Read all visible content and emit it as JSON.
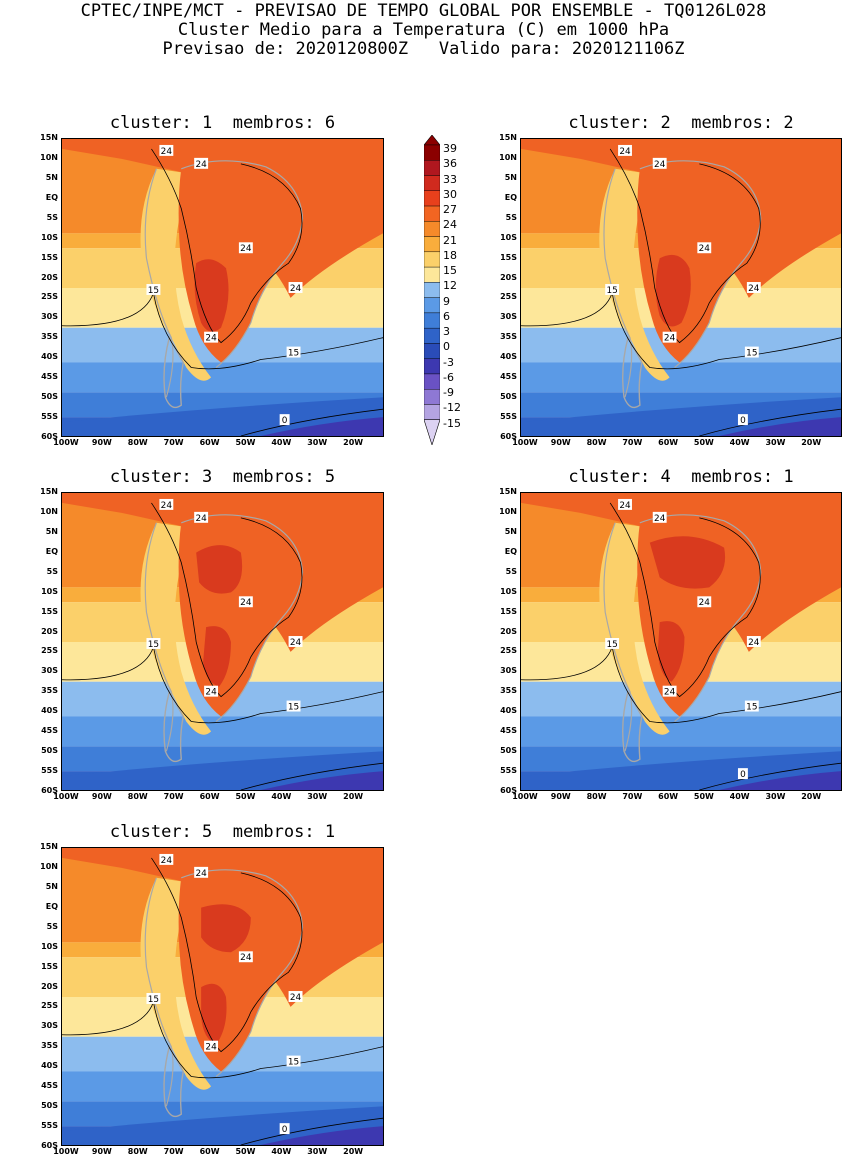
{
  "header": {
    "line1": "CPTEC/INPE/MCT - PREVISAO DE TEMPO GLOBAL POR ENSEMBLE - TQ0126L028",
    "line2": "Cluster Medio para a Temperatura (C) em 1000 hPa",
    "line3": "Previsao de: 2020120800Z   Valido para: 2020121106Z"
  },
  "panels": [
    {
      "title": "cluster: 1  membros: 6",
      "contours": {
        "c24": [
          "24",
          "24",
          "24",
          "24",
          "24"
        ],
        "c15": [
          "15",
          "15"
        ],
        "c0": "0"
      }
    },
    {
      "title": "cluster: 2  membros: 2",
      "contours": {
        "c24": [
          "24",
          "24",
          "24",
          "24",
          "24"
        ],
        "c15": [
          "15",
          "15"
        ],
        "c0": "0"
      }
    },
    {
      "title": "cluster: 3  membros: 5",
      "contours": {
        "c24": [
          "24",
          "24",
          "24",
          "24",
          "24"
        ],
        "c15": [
          "15",
          "15"
        ],
        "c0": ""
      }
    },
    {
      "title": "cluster: 4  membros: 1",
      "contours": {
        "c24": [
          "24",
          "24",
          "24",
          "24",
          "24"
        ],
        "c15": [
          "15",
          "15"
        ],
        "c0": "0"
      }
    },
    {
      "title": "cluster: 5  membros: 1",
      "contours": {
        "c24": [
          "24",
          "24",
          "24",
          "24",
          "24"
        ],
        "c15": [
          "15",
          "15"
        ],
        "c0": "0"
      }
    }
  ],
  "axes": {
    "lat_labels": [
      "15N",
      "10N",
      "5N",
      "EQ",
      "5S",
      "10S",
      "15S",
      "20S",
      "25S",
      "30S",
      "35S",
      "40S",
      "45S",
      "50S",
      "55S",
      "60S"
    ],
    "lon_labels": [
      "100W",
      "90W",
      "80W",
      "70W",
      "60W",
      "50W",
      "40W",
      "30W",
      "20W"
    ]
  },
  "colorbar": {
    "labels": [
      "39",
      "36",
      "33",
      "30",
      "27",
      "24",
      "21",
      "18",
      "15",
      "12",
      "9",
      "6",
      "3",
      "0",
      "-3",
      "-6",
      "-9",
      "-12",
      "-15"
    ],
    "colors": [
      "#8b0000",
      "#b0171f",
      "#d02a1e",
      "#e8401c",
      "#f26522",
      "#f58a2a",
      "#f9ad3c",
      "#fbd06a",
      "#fde79a",
      "#8cbcee",
      "#5b9ae6",
      "#3f7ed8",
      "#2f63c8",
      "#2a4cb8",
      "#3d38b0",
      "#6a52c4",
      "#8e78d4",
      "#b4a4e2",
      "#dcd2f2"
    ]
  },
  "map_colors": {
    "c_hot": "#d93a1e",
    "c_27": "#ef6224",
    "c_24": "#f58a2a",
    "c_21": "#f9ad3c",
    "c_18": "#fbd06a",
    "c_15": "#fde79a",
    "c_12": "#8cbcee",
    "c_9": "#5b9ae6",
    "c_6": "#3f7ed8",
    "c_3": "#2f63c8",
    "c_0": "#3d38b0",
    "land": "#a8a8a8"
  }
}
